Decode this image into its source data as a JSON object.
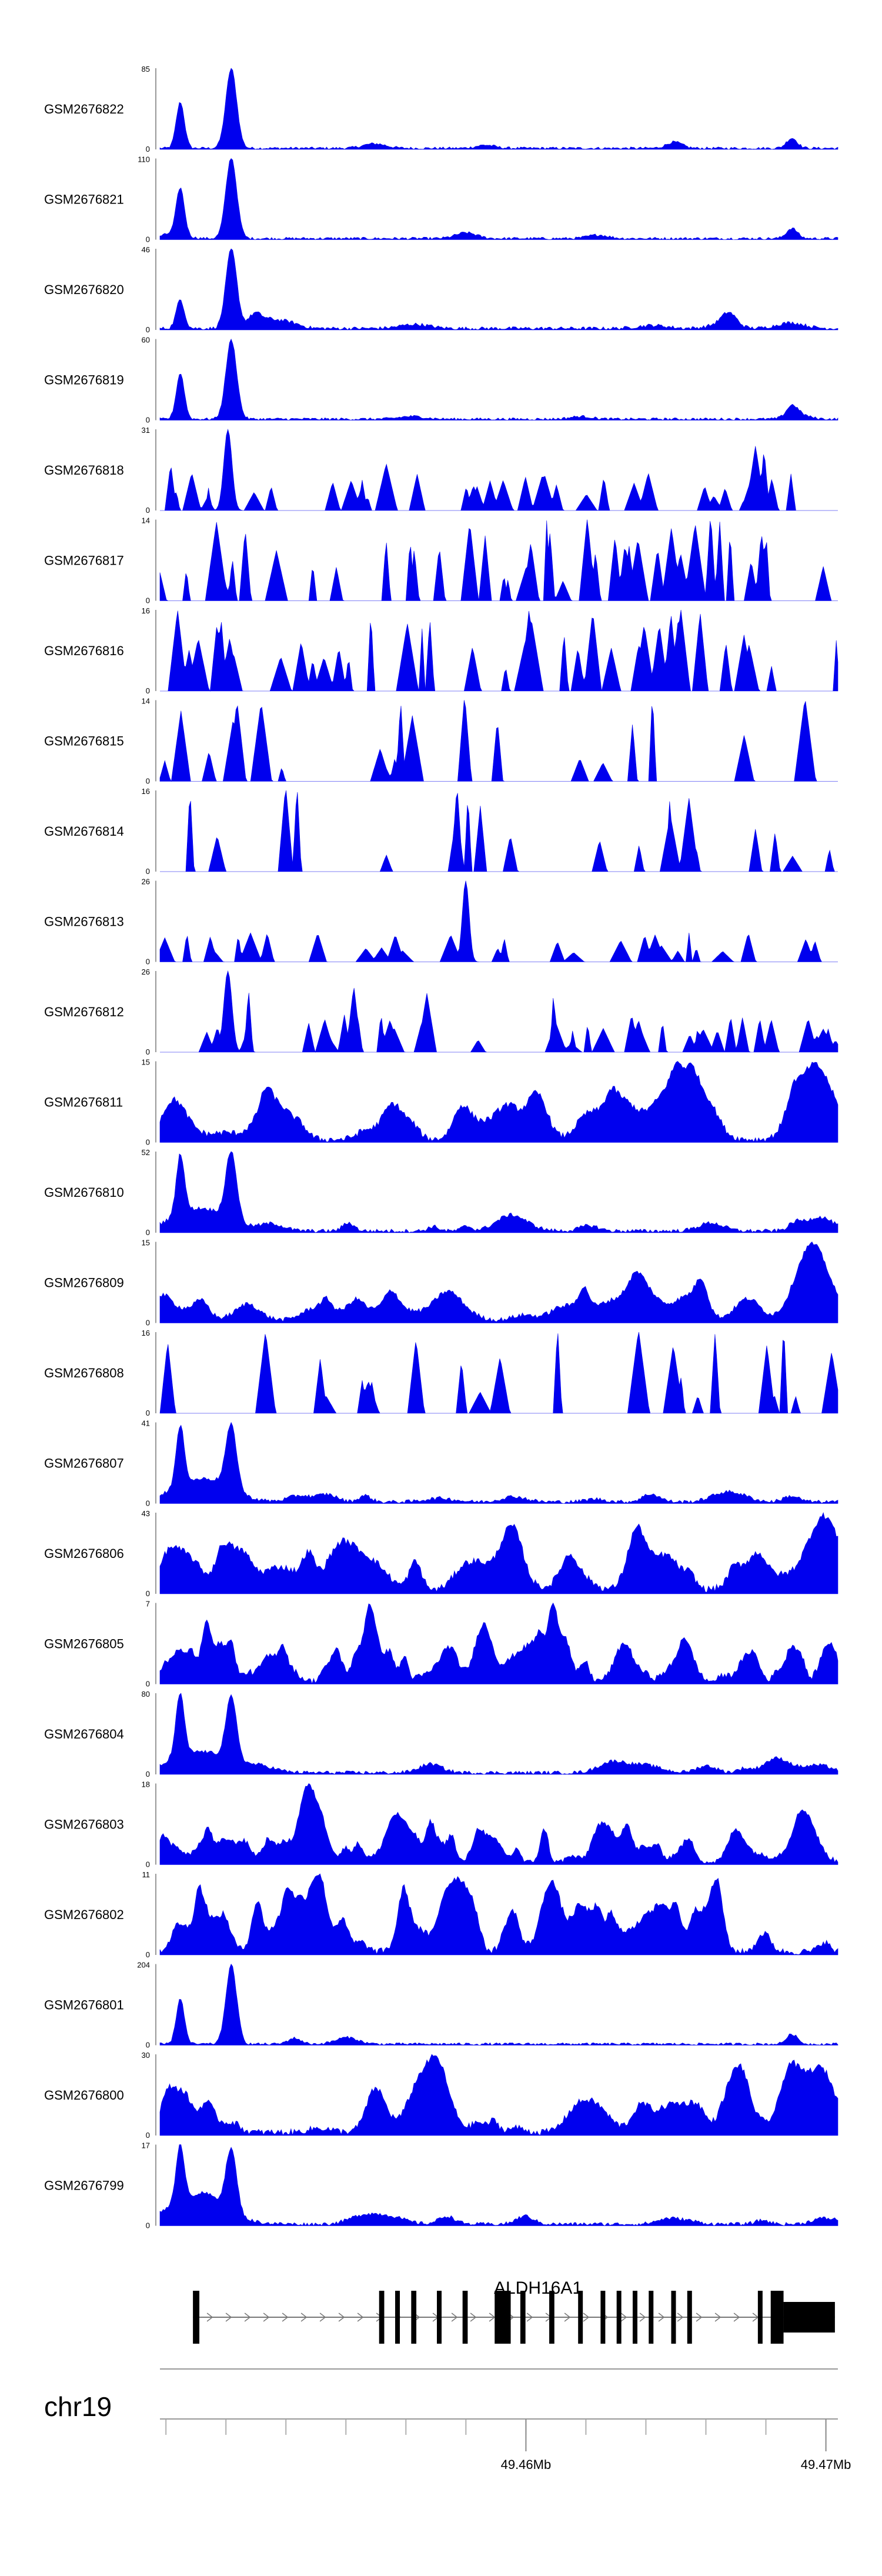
{
  "chart_data": {
    "type": "area",
    "title": "",
    "fill_color": "#0000ee",
    "x_range": [
      49.4478,
      49.4704
    ],
    "tracks": [
      {
        "name": "GSM2676822",
        "ymax": "85",
        "profile": "promoterA"
      },
      {
        "name": "GSM2676821",
        "ymax": "110",
        "profile": "promoterA"
      },
      {
        "name": "GSM2676820",
        "ymax": "46",
        "profile": "promoterB"
      },
      {
        "name": "GSM2676819",
        "ymax": "60",
        "profile": "promoterA"
      },
      {
        "name": "GSM2676818",
        "ymax": "31",
        "profile": "sparseA"
      },
      {
        "name": "GSM2676817",
        "ymax": "14",
        "profile": "spiky"
      },
      {
        "name": "GSM2676816",
        "ymax": "16",
        "profile": "spiky"
      },
      {
        "name": "GSM2676815",
        "ymax": "14",
        "profile": "verySparse"
      },
      {
        "name": "GSM2676814",
        "ymax": "16",
        "profile": "verySparse"
      },
      {
        "name": "GSM2676813",
        "ymax": "26",
        "profile": "sparseB"
      },
      {
        "name": "GSM2676812",
        "ymax": "26",
        "profile": "sparseA"
      },
      {
        "name": "GSM2676811",
        "ymax": "15",
        "profile": "dense"
      },
      {
        "name": "GSM2676810",
        "ymax": "52",
        "profile": "promoterDense"
      },
      {
        "name": "GSM2676809",
        "ymax": "15",
        "profile": "dense"
      },
      {
        "name": "GSM2676808",
        "ymax": "16",
        "profile": "verySparse"
      },
      {
        "name": "GSM2676807",
        "ymax": "41",
        "profile": "promoterDense"
      },
      {
        "name": "GSM2676806",
        "ymax": "43",
        "profile": "dense"
      },
      {
        "name": "GSM2676805",
        "ymax": "7",
        "profile": "veryDense"
      },
      {
        "name": "GSM2676804",
        "ymax": "80",
        "profile": "promoterDense"
      },
      {
        "name": "GSM2676803",
        "ymax": "18",
        "profile": "veryDense"
      },
      {
        "name": "GSM2676802",
        "ymax": "11",
        "profile": "veryDense"
      },
      {
        "name": "GSM2676801",
        "ymax": "204",
        "profile": "promoterA"
      },
      {
        "name": "GSM2676800",
        "ymax": "30",
        "profile": "dense"
      },
      {
        "name": "GSM2676799",
        "ymax": "17",
        "profile": "promoterDense"
      }
    ],
    "track_min_label": "0",
    "gene": {
      "name": "ALDH16A1",
      "start": 49.4489,
      "end": 49.4703,
      "strand": "+"
    },
    "chromosome": "chr19",
    "x_ticks": [
      {
        "value": 49.46,
        "label": "49.46Mb"
      },
      {
        "value": 49.47,
        "label": "49.47Mb"
      }
    ]
  }
}
